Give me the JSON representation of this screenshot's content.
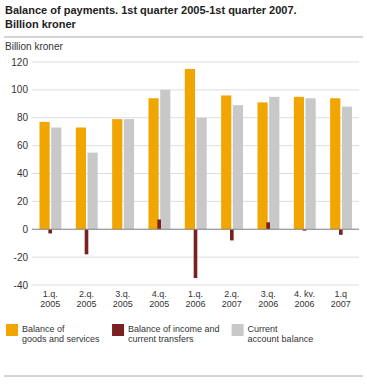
{
  "chart_data": {
    "type": "bar",
    "title": "Balance of payments. 1st quarter 2005-1st quarter 2007.",
    "subtitle": "Billion kroner",
    "ylabel": "Billion kroner",
    "categories": [
      "1.q.\n2005",
      "2.q.\n2005",
      "3.q.\n2005",
      "4.q.\n2005",
      "1.q.\n2006",
      "2.q.\n2007",
      "3.q.\n2006",
      "4. kv.\n2006",
      "1.q\n2007"
    ],
    "series": [
      {
        "name": "Balance of\ngoods and services",
        "color": "#F0A500",
        "values": [
          77,
          73,
          79,
          94,
          115,
          96,
          91,
          95,
          94
        ]
      },
      {
        "name": "Balance of income and\ncurrent transfers",
        "color": "#7B2020",
        "values": [
          -3,
          -18,
          0,
          7,
          -35,
          -8,
          5,
          -1,
          -4
        ]
      },
      {
        "name": "Current\naccount balance",
        "color": "#C8C8C8",
        "values": [
          73,
          55,
          79,
          100,
          80,
          89,
          95,
          94,
          88
        ]
      }
    ],
    "ylim": [
      -40,
      120
    ],
    "yticks": [
      -40,
      -20,
      0,
      20,
      40,
      60,
      80,
      100,
      120
    ],
    "grid": true,
    "legend": "bottom"
  }
}
